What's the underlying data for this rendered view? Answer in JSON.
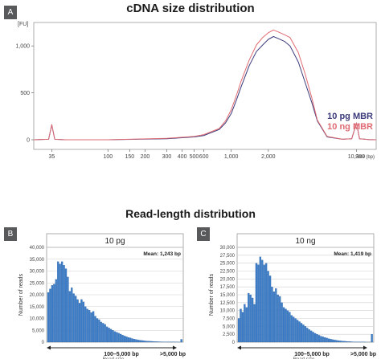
{
  "panel_a": {
    "badge": "A",
    "title": "cDNA size distribution"
  },
  "panel_b": {
    "badge": "B"
  },
  "panel_c": {
    "badge": "C"
  },
  "section_title": "Read-length distribution",
  "colors": {
    "pg_line": "#3a3a7a",
    "ng_line": "#e06a72",
    "bar_fill": "#3d7cc6",
    "bar_edge": "#2a5f9e"
  },
  "chart_data": [
    {
      "type": "line",
      "title": "cDNA size distribution",
      "ylabel": "[FU]",
      "xlabel": "Size (bp)",
      "x_scale": "log",
      "x_ticks": [
        "35",
        "100",
        "150",
        "200",
        "300",
        "400",
        "500",
        "600",
        "1,000",
        "2,000",
        "10,380"
      ],
      "x_tick_values": [
        35,
        100,
        150,
        200,
        300,
        400,
        500,
        600,
        1000,
        2000,
        10380
      ],
      "y_ticks": [
        "0",
        "500",
        "1,000"
      ],
      "ylim": [
        0,
        1250
      ],
      "xlim": [
        25,
        15000
      ],
      "legend_placement": "right",
      "series": [
        {
          "name": "10 pg MBR",
          "x": [
            25,
            33,
            35,
            37,
            45,
            100,
            300,
            500,
            600,
            800,
            900,
            1000,
            1100,
            1200,
            1400,
            1600,
            1800,
            2000,
            2200,
            2400,
            2700,
            3000,
            3500,
            4000,
            4500,
            5000,
            6000,
            8000,
            9500,
            10380,
            11000,
            13000,
            15000
          ],
          "y": [
            0,
            5,
            160,
            5,
            0,
            0,
            10,
            30,
            45,
            110,
            180,
            280,
            420,
            560,
            790,
            940,
            1010,
            1070,
            1100,
            1080,
            1050,
            1000,
            830,
            600,
            400,
            200,
            30,
            5,
            10,
            180,
            10,
            2,
            0
          ]
        },
        {
          "name": "10 ng MBR",
          "x": [
            25,
            33,
            35,
            37,
            45,
            100,
            300,
            500,
            600,
            800,
            900,
            1000,
            1100,
            1200,
            1400,
            1600,
            1800,
            2000,
            2200,
            2400,
            2700,
            3000,
            3500,
            4000,
            4500,
            5000,
            6000,
            8000,
            9500,
            10380,
            11000,
            13000,
            15000
          ],
          "y": [
            0,
            5,
            160,
            5,
            0,
            0,
            15,
            35,
            55,
            120,
            200,
            320,
            470,
            620,
            850,
            1010,
            1090,
            1140,
            1170,
            1150,
            1120,
            1090,
            930,
            690,
            450,
            210,
            35,
            5,
            10,
            180,
            10,
            2,
            0
          ]
        }
      ]
    },
    {
      "type": "bar",
      "title": "10 pg",
      "mean_label": "Mean: 1,243 bp",
      "ylabel": "Number of reads",
      "xlabel": "Read size",
      "range_label": "100–5,000 bp",
      "overflow_label": ">5,000 bp",
      "y_ticks": [
        "0",
        "5,000",
        "10,000",
        "15,000",
        "20,000",
        "25,000",
        "30,000",
        "35,000",
        "40,000"
      ],
      "ylim": [
        0,
        40000
      ],
      "values": [
        21000,
        22500,
        24000,
        24500,
        26500,
        34000,
        33000,
        34000,
        32500,
        31000,
        27500,
        21500,
        23000,
        20500,
        19500,
        18000,
        16500,
        18000,
        17000,
        15000,
        14000,
        13500,
        12500,
        13000,
        11000,
        10000,
        9500,
        8500,
        8000,
        7500,
        6500,
        6000,
        5500,
        5000,
        4500,
        4200,
        3800,
        3400,
        3000,
        2600,
        2300,
        2000,
        1800,
        1500,
        1300,
        1100,
        900,
        800,
        700,
        600,
        500,
        450,
        400,
        350,
        300,
        250,
        200,
        170,
        150,
        120,
        100,
        90,
        80,
        70,
        60,
        50,
        40,
        30,
        1200
      ]
    },
    {
      "type": "bar",
      "title": "10 ng",
      "mean_label": "Mean: 1,419 bp",
      "ylabel": "Number of reads",
      "xlabel": "Read size",
      "range_label": "100–5,000 bp",
      "overflow_label": ">5,000 bp",
      "y_ticks": [
        "0",
        "2,500",
        "5,000",
        "7,500",
        "10,000",
        "12,500",
        "15,000",
        "17,500",
        "20,000",
        "22,500",
        "25,000",
        "27,500",
        "30,000"
      ],
      "ylim": [
        0,
        30000
      ],
      "values": [
        7500,
        10500,
        9500,
        12000,
        11000,
        15500,
        15000,
        14000,
        12000,
        25000,
        24500,
        27000,
        26000,
        24500,
        25000,
        22500,
        21000,
        17500,
        16000,
        17000,
        15000,
        14500,
        12500,
        11000,
        10500,
        10000,
        9500,
        8500,
        8000,
        7500,
        7000,
        6500,
        6000,
        5500,
        5000,
        4500,
        4000,
        3600,
        3200,
        2800,
        2500,
        2200,
        1900,
        1700,
        1500,
        1300,
        1100,
        950,
        800,
        700,
        600,
        500,
        420,
        350,
        300,
        250,
        200,
        160,
        130,
        100,
        80,
        60,
        50,
        40,
        30,
        20,
        15,
        10,
        2500
      ]
    }
  ]
}
